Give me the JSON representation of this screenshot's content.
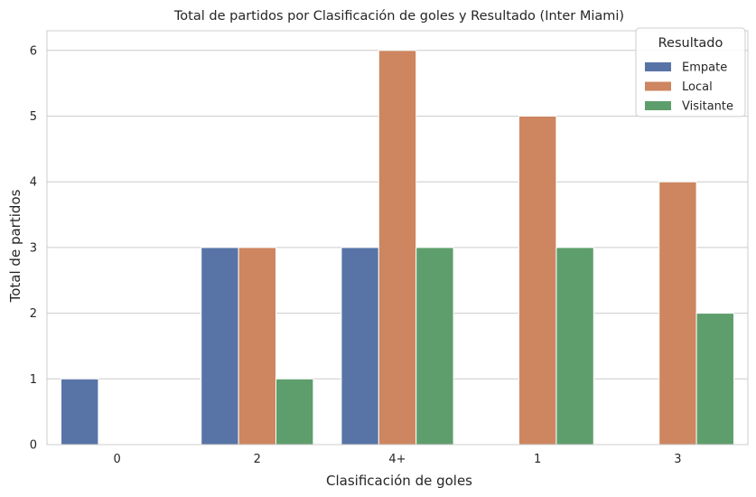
{
  "chart_data": {
    "type": "bar",
    "title": "Total de partidos por Clasificación de goles y Resultado (Inter Miami)",
    "xlabel": "Clasificación de goles",
    "ylabel": "Total de partidos",
    "categories": [
      "0",
      "2",
      "4+",
      "1",
      "3"
    ],
    "series": [
      {
        "name": "Empate",
        "color": "#5874a6",
        "values": [
          1,
          3,
          3,
          0,
          0
        ]
      },
      {
        "name": "Local",
        "color": "#cd8660",
        "values": [
          0,
          3,
          6,
          5,
          4
        ]
      },
      {
        "name": "Visitante",
        "color": "#5e9e6c",
        "values": [
          0,
          1,
          3,
          3,
          2
        ]
      }
    ],
    "ylim": [
      0,
      6.3
    ],
    "yticks": [
      0,
      1,
      2,
      3,
      4,
      5,
      6
    ],
    "grid": true,
    "legend": {
      "title": "Resultado",
      "placement": "top-right"
    }
  }
}
